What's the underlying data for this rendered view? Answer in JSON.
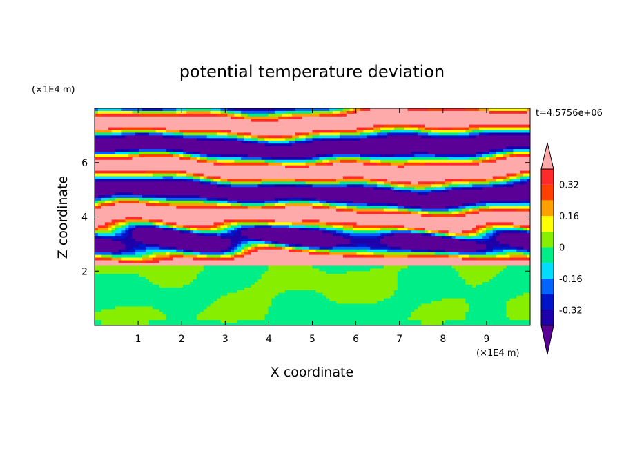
{
  "chart_data": {
    "type": "heatmap",
    "title": "potential temperature deviation",
    "xlabel": "X coordinate",
    "ylabel": "Z coordinate",
    "x_unit": "(×1E4 m)",
    "y_unit": "(×1E4 m)",
    "time_label": "t=4.5756e+06",
    "xlim": [
      0,
      10
    ],
    "ylim": [
      0,
      8
    ],
    "x_ticks": [
      "1",
      "2",
      "3",
      "4",
      "5",
      "6",
      "7",
      "8",
      "9"
    ],
    "y_ticks": [
      "2",
      "4",
      "6"
    ],
    "colorbar": {
      "labels": [
        "0.32",
        "0.16",
        "0",
        "-0.16",
        "-0.32"
      ],
      "label_values": [
        0.32,
        0.16,
        0,
        -0.16,
        -0.32
      ],
      "levels": [
        -0.4,
        -0.32,
        -0.24,
        -0.16,
        -0.08,
        0,
        0.08,
        0.16,
        0.24,
        0.32,
        0.4
      ],
      "colors": [
        "#5a0096",
        "#1e00aa",
        "#0014c8",
        "#0064ff",
        "#00dcff",
        "#00ee88",
        "#88ee00",
        "#ffff00",
        "#ffa000",
        "#ff4000",
        "#ff2a2a",
        "#ffaaaa"
      ],
      "extend": "both"
    },
    "structure": {
      "lower_layer_z": [
        0,
        2.2
      ],
      "lower_layer_values": [
        0,
        0.08
      ],
      "upper_layer_z": [
        2.2,
        8
      ],
      "upper_layer_pattern": "alternating horizontal bands of below -0.4 and above 0.4"
    }
  }
}
